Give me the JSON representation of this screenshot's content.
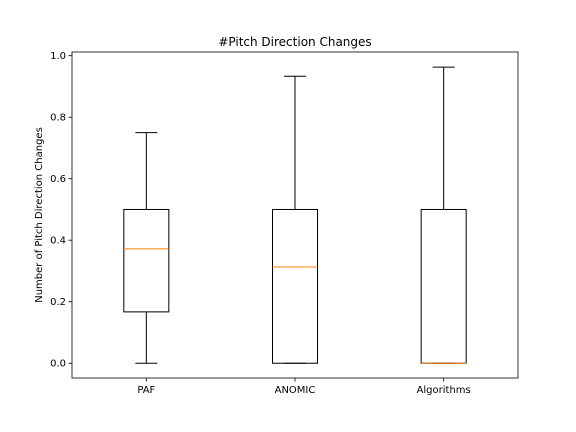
{
  "chart_data": {
    "type": "box",
    "title": "#Pitch Direction Changes",
    "xlabel": "",
    "ylabel": "Number of Pitch Direction Changes",
    "categories": [
      "PAF",
      "ANOMIC",
      "Algorithms"
    ],
    "boxes": [
      {
        "name": "PAF",
        "whisker_low": 0.0,
        "q1": 0.167,
        "median": 0.372,
        "q3": 0.5,
        "whisker_high": 0.75
      },
      {
        "name": "ANOMIC",
        "whisker_low": 0.0,
        "q1": 0.0,
        "median": 0.313,
        "q3": 0.5,
        "whisker_high": 0.933
      },
      {
        "name": "Algorithms",
        "whisker_low": 0.0,
        "q1": 0.0,
        "median": 0.0,
        "q3": 0.5,
        "whisker_high": 0.963
      }
    ],
    "yticks": [
      "0.0",
      "0.2",
      "0.4",
      "0.6",
      "0.8",
      "1.0"
    ],
    "ylim": [
      -0.048,
      1.012
    ],
    "grid": false,
    "colors": {
      "box": "#000000",
      "median": "#ff7f0e",
      "whisker": "#000000"
    }
  }
}
